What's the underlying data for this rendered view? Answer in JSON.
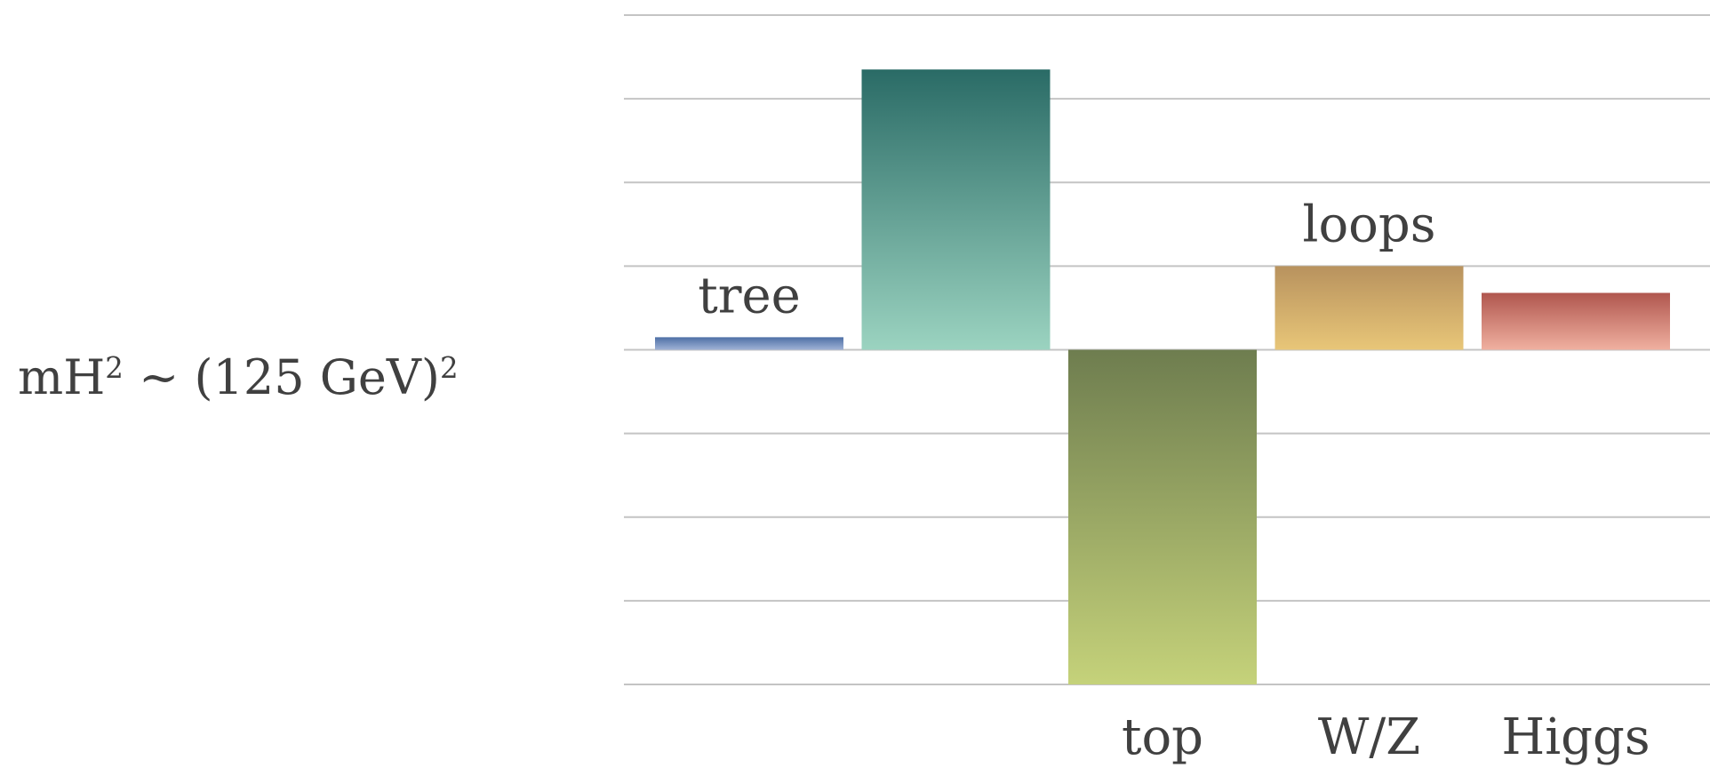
{
  "formula": {
    "main": "mH",
    "sup1": "2",
    "mid": " ~ (125 GeV)",
    "sup2": "2"
  },
  "chart_data": {
    "type": "bar",
    "title": "",
    "xlabel": "",
    "ylabel": "",
    "ylim": [
      -4,
      4
    ],
    "grid": true,
    "categories": [
      "tree",
      "",
      "top",
      "W/Z",
      "Higgs"
    ],
    "values": [
      0.15,
      3.35,
      -4.0,
      1.0,
      0.68
    ],
    "colors": [
      [
        "#4e6fa6",
        "#9fb2d6"
      ],
      [
        "#2a6b66",
        "#9bd3c0"
      ],
      [
        "#6e7d4f",
        "#c5d27a"
      ],
      [
        "#b8925e",
        "#e8c678"
      ],
      [
        "#b0564e",
        "#f0b0a0"
      ]
    ],
    "annotations": [
      {
        "text": "tree",
        "category": 0,
        "position": "above"
      },
      {
        "text": "loops",
        "category": 3,
        "position": "above"
      }
    ]
  }
}
